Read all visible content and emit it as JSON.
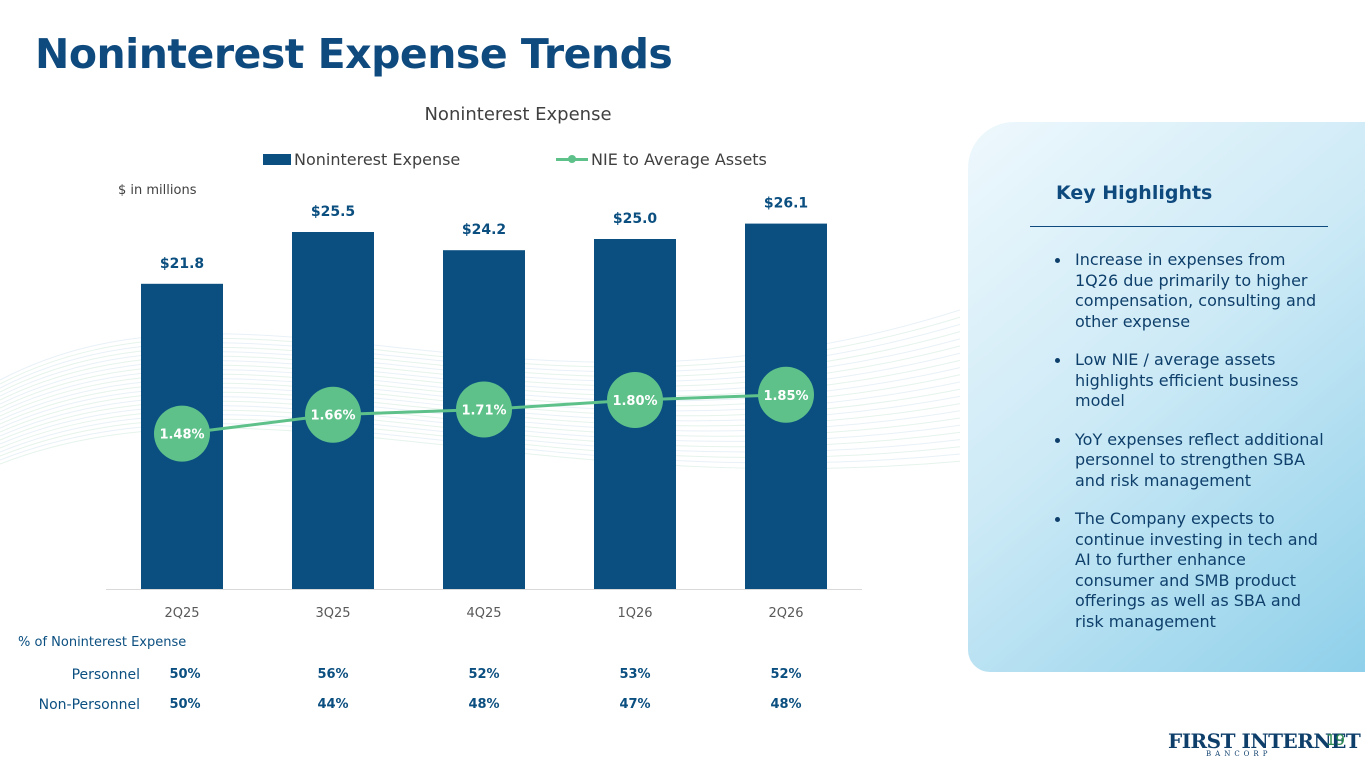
{
  "slide": {
    "title": "Noninterest Expense Trends",
    "page_number": "19"
  },
  "chart_data": {
    "type": "bar",
    "title": "Noninterest Expense",
    "units_note": "$ in millions",
    "categories": [
      "2Q25",
      "3Q25",
      "4Q25",
      "1Q26",
      "2Q26"
    ],
    "series": [
      {
        "name": "Noninterest Expense",
        "type": "bar",
        "values": [
          21.8,
          25.5,
          24.2,
          25.0,
          26.1
        ],
        "labels": [
          "$21.8",
          "$25.5",
          "$24.2",
          "$25.0",
          "$26.1"
        ],
        "color": "#0b4f80"
      },
      {
        "name": "NIE to Average Assets",
        "type": "line",
        "values": [
          1.48,
          1.66,
          1.71,
          1.8,
          1.85
        ],
        "labels": [
          "1.48%",
          "1.66%",
          "1.71%",
          "1.80%",
          "1.85%"
        ],
        "color": "#5ec18a"
      }
    ],
    "ylim": [
      0,
      27
    ],
    "y2lim": [
      0,
      3.6
    ],
    "legend_position": "top"
  },
  "composition_table": {
    "caption": "% of Noninterest Expense",
    "rows": [
      {
        "label": "Personnel",
        "values": [
          "50%",
          "56%",
          "52%",
          "53%",
          "52%"
        ]
      },
      {
        "label": "Non-Personnel",
        "values": [
          "50%",
          "44%",
          "48%",
          "47%",
          "48%"
        ]
      }
    ]
  },
  "highlights": {
    "heading": "Key Highlights",
    "bullets": [
      "Increase in expenses from 1Q26 due primarily to higher compensation, consulting and other expense",
      "Low NIE / average assets highlights efficient business model",
      "YoY expenses reflect additional personnel to strengthen SBA and risk management",
      "The Company expects to continue investing in tech and AI to further enhance consumer and SMB product offerings as well as SBA and risk management"
    ]
  },
  "logo": {
    "text": "FIRST INTERNET",
    "subtext": "BANCORP"
  },
  "colors": {
    "navy": "#0b4f80",
    "green": "#5ec18a",
    "panel_light": "#e6f5fb",
    "panel_dark": "#8fd0ea"
  }
}
